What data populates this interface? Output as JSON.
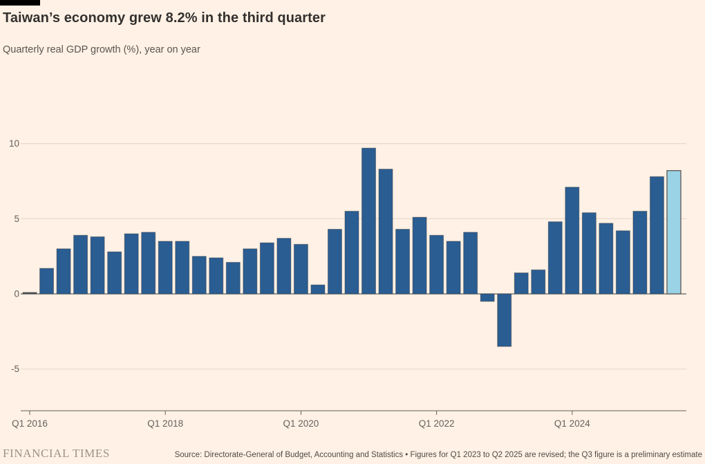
{
  "page": {
    "background": "#FFF1E5"
  },
  "header": {
    "title": "Taiwan’s economy grew 8.2% in the third quarter",
    "subtitle": "Quarterly real GDP growth (%), year on year"
  },
  "footer": {
    "brand": "FINANCIAL TIMES",
    "source": "Source: Directorate-General of Budget, Accounting and Statistics • Figures for Q1 2023 to Q2 2025 are revised; the Q3 figure is a preliminary estimate"
  },
  "chart_data": {
    "type": "bar",
    "title": "Taiwan’s economy grew 8.2% in the third quarter",
    "subtitle": "Quarterly real GDP growth (%), year on year",
    "ylabel": "",
    "xlabel": "",
    "categories": [
      "Q1 2016",
      "Q2 2016",
      "Q3 2016",
      "Q4 2016",
      "Q1 2017",
      "Q2 2017",
      "Q3 2017",
      "Q4 2017",
      "Q1 2018",
      "Q2 2018",
      "Q3 2018",
      "Q4 2018",
      "Q1 2019",
      "Q2 2019",
      "Q3 2019",
      "Q4 2019",
      "Q1 2020",
      "Q2 2020",
      "Q3 2020",
      "Q4 2020",
      "Q1 2021",
      "Q2 2021",
      "Q3 2021",
      "Q4 2021",
      "Q1 2022",
      "Q2 2022",
      "Q3 2022",
      "Q4 2022",
      "Q1 2023",
      "Q2 2023",
      "Q3 2023",
      "Q4 2023",
      "Q1 2024",
      "Q2 2024",
      "Q3 2024",
      "Q4 2024",
      "Q1 2025",
      "Q2 2025",
      "Q3 2025"
    ],
    "values": [
      0.1,
      1.7,
      3.0,
      3.9,
      3.8,
      2.8,
      4.0,
      4.1,
      3.5,
      3.5,
      2.5,
      2.4,
      2.1,
      3.0,
      3.4,
      3.7,
      3.3,
      0.6,
      4.3,
      5.5,
      9.7,
      8.3,
      4.3,
      5.1,
      3.9,
      3.5,
      4.1,
      -0.5,
      -3.5,
      1.4,
      1.6,
      4.8,
      7.1,
      5.4,
      4.7,
      4.2,
      5.5,
      7.8,
      8.2
    ],
    "highlight_index": 38,
    "highlight_note": "Q3 2025 preliminary estimate shown in light blue",
    "yticks": [
      10,
      5,
      0,
      -5
    ],
    "xticks": [
      "Q1 2016",
      "Q1 2018",
      "Q1 2020",
      "Q1 2022",
      "Q1 2024"
    ],
    "ylim": [
      -5,
      10
    ],
    "grid": "horizontal",
    "legend": "none",
    "colors": {
      "bar": "#2A5D92",
      "highlight": "#9AD2E6",
      "near_zero_bar": "#4F545A",
      "grid": "#E6D8CB",
      "zero_line": "#66605C",
      "axis": "#66605C",
      "text": "#33302E",
      "background": "#FFF1E5"
    }
  }
}
